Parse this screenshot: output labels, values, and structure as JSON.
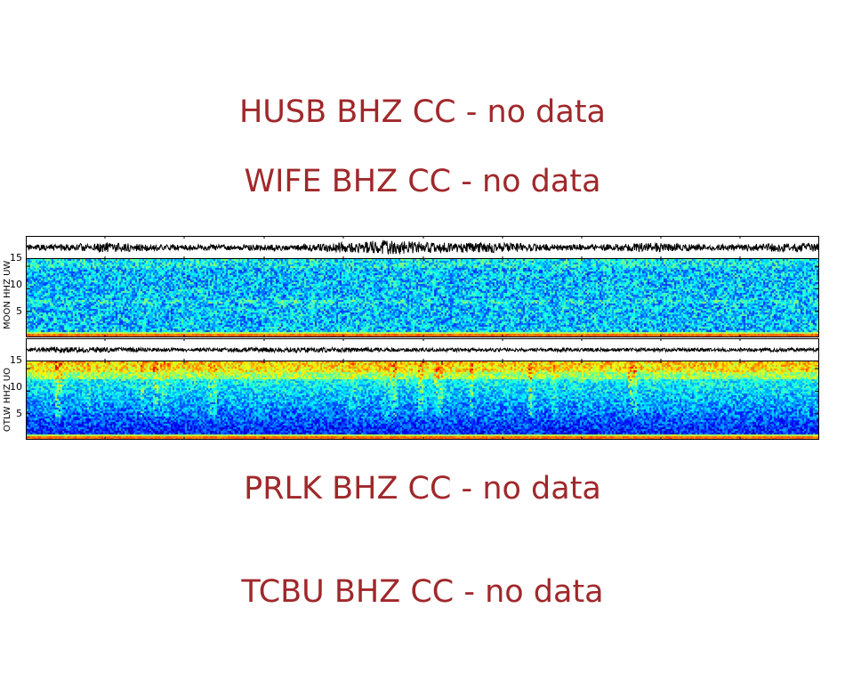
{
  "stations_no_data": [
    {
      "label": "HUSB BHZ CC - no data"
    },
    {
      "label": "WIFE BHZ CC - no data"
    },
    {
      "label": "PRLK BHZ CC - no data"
    },
    {
      "label": "TCBU BHZ CC - no data"
    }
  ],
  "colors": {
    "no_data_text": "#a0282b",
    "trace": "#000000",
    "colormap": "jet"
  },
  "chart_data": [
    {
      "type": "heatmap",
      "station_label": "MOON HHZ UW",
      "ylim": [
        0,
        16
      ],
      "yticks": [
        "5",
        "10",
        "15"
      ],
      "ytick_values": [
        5,
        10,
        15
      ],
      "grid": false,
      "legend": "none",
      "waveform": "seismogram trace above spectrogram",
      "intensity_profile": "moderate, cyan/blue noise with a bright yellow band near 0 Hz"
    },
    {
      "type": "heatmap",
      "station_label": "OTLW HHZ UO",
      "ylim": [
        0,
        16
      ],
      "yticks": [
        "5",
        "10",
        "15"
      ],
      "ytick_values": [
        5,
        10,
        15
      ],
      "grid": false,
      "legend": "none",
      "waveform": "seismogram trace above spectrogram",
      "intensity_profile": "strong energy above 12 Hz with yellow streaks, dark blue at low frequencies, yellow band near 0 Hz"
    }
  ]
}
